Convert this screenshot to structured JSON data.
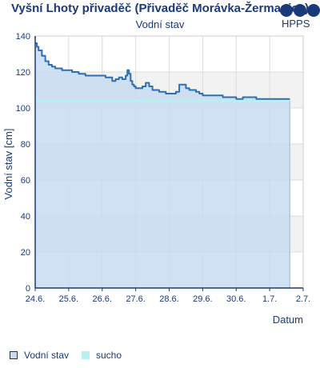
{
  "header": {
    "title": "Vyšní Lhoty přivaděč (Přivaděč Morávka-Žermanice)",
    "subtitle": "Vodní stav",
    "logo_text": "HPPS"
  },
  "legend": {
    "items": [
      {
        "label": "Vodní stav",
        "color": "#c7dcf0"
      },
      {
        "label": "sucho",
        "color": "#b6f0f3"
      }
    ]
  },
  "chart_data": {
    "type": "area",
    "title": "Vyšní Lhoty přivaděč (Přivaděč Morávka-Žermanice)",
    "subtitle": "Vodní stav",
    "xlabel": "Datum",
    "ylabel": "Vodní stav [cm]",
    "x_tick_labels": [
      "24.6.",
      "25.6.",
      "26.6.",
      "27.6.",
      "28.6.",
      "29.6.",
      "30.6.",
      "1.7.",
      "2.7."
    ],
    "y_ticks": [
      0,
      20,
      40,
      60,
      80,
      100,
      120,
      140
    ],
    "xlim": [
      0,
      8
    ],
    "ylim": [
      0,
      140
    ],
    "grid": true,
    "legend_position": "bottom-left",
    "drought_level": 104,
    "series": [
      {
        "name": "Vodní stav",
        "color": "#2d6fb0",
        "fill": "#c7dcf0",
        "x": [
          0.0,
          0.05,
          0.1,
          0.2,
          0.3,
          0.4,
          0.5,
          0.6,
          0.7,
          0.8,
          0.9,
          1.0,
          1.1,
          1.2,
          1.3,
          1.4,
          1.5,
          1.6,
          1.7,
          1.8,
          1.9,
          2.0,
          2.1,
          2.2,
          2.3,
          2.4,
          2.5,
          2.6,
          2.7,
          2.75,
          2.8,
          2.85,
          2.9,
          2.95,
          3.0,
          3.1,
          3.2,
          3.3,
          3.4,
          3.5,
          3.6,
          3.7,
          3.8,
          3.9,
          4.0,
          4.1,
          4.2,
          4.3,
          4.4,
          4.5,
          4.6,
          4.7,
          4.8,
          4.9,
          5.0,
          5.2,
          5.4,
          5.6,
          5.8,
          6.0,
          6.2,
          6.4,
          6.6,
          6.8,
          7.0,
          7.2,
          7.4,
          7.5,
          7.6
        ],
        "y": [
          136,
          134,
          132,
          129,
          126,
          124,
          123,
          122,
          122,
          121,
          121,
          121,
          120,
          120,
          119,
          119,
          118,
          118,
          118,
          118,
          118,
          118,
          117,
          117,
          115,
          116,
          117,
          116,
          118,
          121,
          119,
          115,
          113,
          112,
          111,
          111,
          112,
          114,
          112,
          110,
          110,
          109,
          109,
          108,
          108,
          108,
          109,
          113,
          113,
          111,
          110,
          110,
          109,
          108,
          107,
          107,
          107,
          106,
          106,
          105,
          106,
          106,
          105,
          105,
          105,
          105,
          105,
          105,
          105
        ]
      },
      {
        "name": "sucho",
        "color": "#b6f0f3",
        "x": [
          0,
          7.6
        ],
        "y": [
          104,
          104
        ]
      }
    ]
  }
}
